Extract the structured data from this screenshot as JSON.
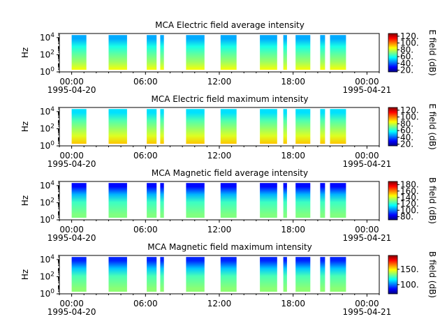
{
  "x_tick_labels": [
    "00:00",
    "06:00",
    "12:00",
    "18:00",
    "00:00"
  ],
  "x_tick_hours": [
    0,
    6,
    12,
    18,
    24
  ],
  "date_start": "1995-04-20",
  "date_end": "1995-04-21",
  "ylabel": "Hz",
  "y_tick_labels": [
    "10",
    "10",
    "10"
  ],
  "y_tick_exponents": [
    "0",
    "2",
    "4"
  ],
  "y_tick_log_values": [
    0,
    2,
    4
  ],
  "colors": {
    "frame": "#000000",
    "background": "#ffffff"
  },
  "chart_data": [
    {
      "type": "heatmap",
      "title": "MCA  Electric field average intensity",
      "ylabel": "Hz",
      "yscale": "log",
      "ylim": [
        1,
        30000
      ],
      "xlim_hours": [
        -1,
        25
      ],
      "colorbar_label": "E field (dB)",
      "colorbar_ticks": [
        20,
        40,
        60,
        80,
        100,
        120
      ],
      "colorbar_tick_labels": [
        "20.",
        "40.",
        "60.",
        "80.",
        "100.",
        "120."
      ],
      "clim": [
        15,
        128
      ],
      "data_intervals_hours": [
        [
          0.0,
          1.2
        ],
        [
          3.0,
          4.5
        ],
        [
          6.1,
          6.9
        ],
        [
          7.2,
          7.5
        ],
        [
          9.3,
          10.8
        ],
        [
          12.1,
          13.4
        ],
        [
          15.3,
          16.7
        ],
        [
          17.2,
          17.5
        ],
        [
          18.2,
          19.4
        ],
        [
          20.2,
          20.6
        ],
        [
          21.0,
          22.3
        ]
      ],
      "color_profile": [
        [
          0,
          85
        ],
        [
          1,
          75
        ],
        [
          2,
          68
        ],
        [
          3,
          60
        ],
        [
          4,
          48
        ]
      ]
    },
    {
      "type": "heatmap",
      "title": "MCA  Electric field maximum intensity",
      "ylabel": "Hz",
      "yscale": "log",
      "ylim": [
        1,
        30000
      ],
      "xlim_hours": [
        -1,
        25
      ],
      "colorbar_label": "E field (dB)",
      "colorbar_ticks": [
        20,
        40,
        60,
        80,
        100,
        120
      ],
      "colorbar_tick_labels": [
        "20.",
        "40.",
        "60.",
        "80.",
        "100.",
        "120."
      ],
      "clim": [
        15,
        128
      ],
      "data_intervals_hours": [
        [
          0.0,
          1.2
        ],
        [
          3.0,
          4.5
        ],
        [
          6.1,
          6.9
        ],
        [
          7.2,
          7.5
        ],
        [
          9.3,
          10.8
        ],
        [
          12.1,
          13.4
        ],
        [
          15.3,
          16.7
        ],
        [
          17.2,
          17.5
        ],
        [
          18.2,
          19.4
        ],
        [
          20.2,
          20.6
        ],
        [
          21.0,
          22.3
        ]
      ],
      "color_profile": [
        [
          0,
          92
        ],
        [
          1,
          82
        ],
        [
          2,
          74
        ],
        [
          3,
          66
        ],
        [
          4,
          54
        ]
      ]
    },
    {
      "type": "heatmap",
      "title": "MCA  Magnetic field average intensity",
      "ylabel": "Hz",
      "yscale": "log",
      "ylim": [
        1,
        30000
      ],
      "xlim_hours": [
        -1,
        25
      ],
      "colorbar_label": "B field (dB)",
      "colorbar_ticks": [
        80,
        100,
        120,
        140,
        160,
        180
      ],
      "colorbar_tick_labels": [
        "80.",
        "100.",
        "120.",
        "140.",
        "160.",
        "180."
      ],
      "clim": [
        70,
        190
      ],
      "data_intervals_hours": [
        [
          0.0,
          1.2
        ],
        [
          3.0,
          4.5
        ],
        [
          6.1,
          6.9
        ],
        [
          7.2,
          7.5
        ],
        [
          9.3,
          10.8
        ],
        [
          12.1,
          13.4
        ],
        [
          15.3,
          16.7
        ],
        [
          17.2,
          17.5
        ],
        [
          18.2,
          19.4
        ],
        [
          20.2,
          20.6
        ],
        [
          21.0,
          22.3
        ]
      ],
      "color_profile": [
        [
          0.4,
          130
        ],
        [
          1.2,
          126
        ],
        [
          2,
          122
        ],
        [
          3,
          106
        ],
        [
          4,
          86
        ]
      ]
    },
    {
      "type": "heatmap",
      "title": "MCA  Magnetic field maximum intensity",
      "ylabel": "Hz",
      "yscale": "log",
      "ylim": [
        1,
        30000
      ],
      "xlim_hours": [
        -1,
        25
      ],
      "colorbar_label": "B field (dB)",
      "colorbar_ticks": [
        100,
        150
      ],
      "colorbar_tick_labels": [
        "100.",
        "150."
      ],
      "clim": [
        70,
        195
      ],
      "data_intervals_hours": [
        [
          0.0,
          1.2
        ],
        [
          3.0,
          4.5
        ],
        [
          6.1,
          6.9
        ],
        [
          7.2,
          7.5
        ],
        [
          9.3,
          10.8
        ],
        [
          12.1,
          13.4
        ],
        [
          15.3,
          16.7
        ],
        [
          17.2,
          17.5
        ],
        [
          18.2,
          19.4
        ],
        [
          20.2,
          20.6
        ],
        [
          21.0,
          22.3
        ]
      ],
      "color_profile": [
        [
          0.4,
          134
        ],
        [
          1.2,
          130
        ],
        [
          2,
          126
        ],
        [
          3,
          110
        ],
        [
          4,
          90
        ]
      ]
    }
  ]
}
